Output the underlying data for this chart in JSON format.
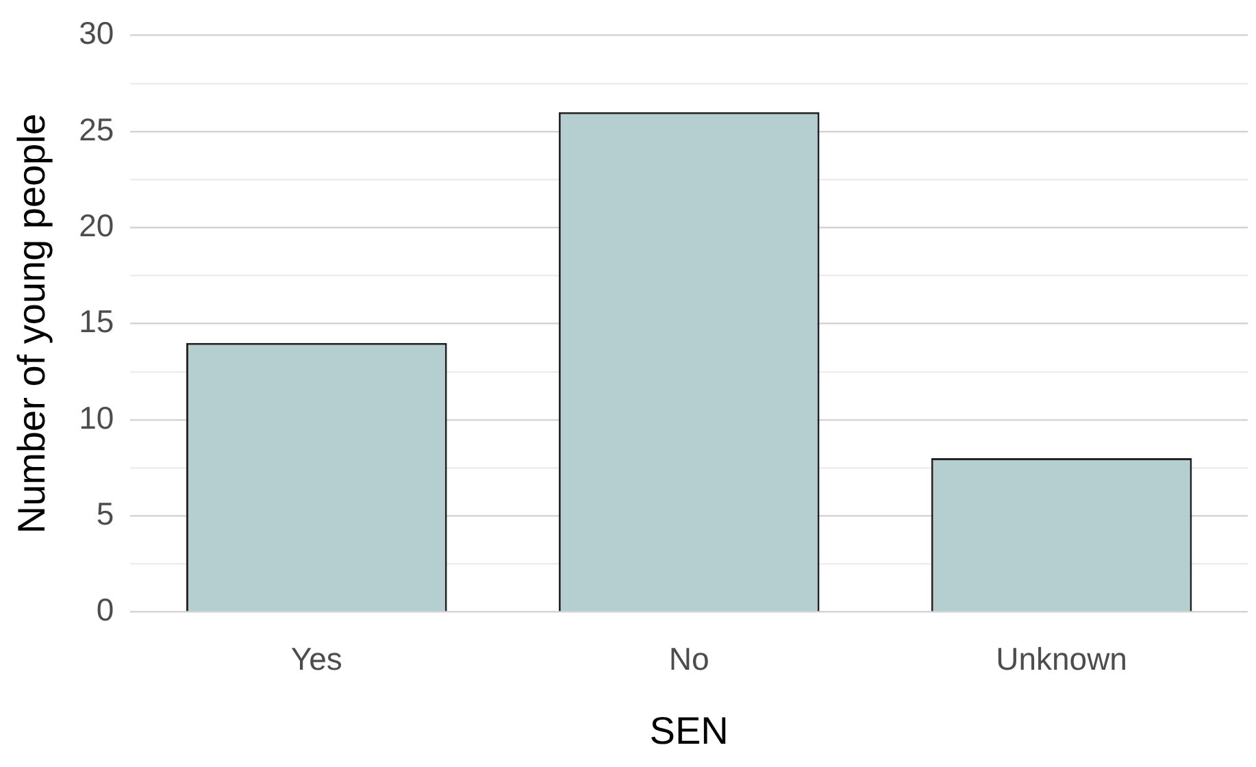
{
  "chart_data": {
    "type": "bar",
    "xlabel": "SEN",
    "ylabel": "Number of young people",
    "categories": [
      "Yes",
      "No",
      "Unknown"
    ],
    "values": [
      14,
      26,
      8
    ],
    "color": "#b5cfd0",
    "ylim": [
      0,
      30
    ],
    "yticks": [
      0,
      {
        "value": 2.5,
        "label": null
      },
      5,
      {
        "value": 7.5,
        "label": null
      },
      10,
      {
        "value": 12.5,
        "label": null
      },
      15,
      {
        "value": 17.5,
        "label": null
      },
      20,
      {
        "value": 22.5,
        "label": null
      },
      25,
      {
        "value": 27.5,
        "label": null
      },
      30
    ],
    "grid": "y"
  }
}
